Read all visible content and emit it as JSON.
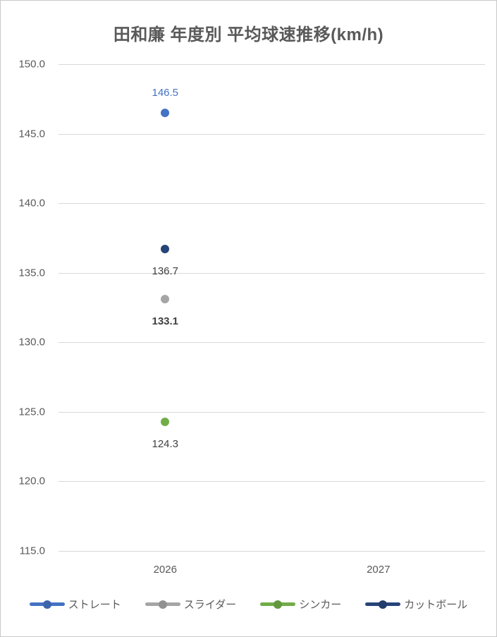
{
  "title": "田和廉 年度別 平均球速推移(km/h)",
  "chart_data": {
    "type": "scatter",
    "title": "田和廉 年度別 平均球速推移(km/h)",
    "categories": [
      "2026",
      "2027"
    ],
    "xlabel": "",
    "ylabel": "",
    "ylim": [
      115.0,
      150.0
    ],
    "ytick_step": 5.0,
    "yticks": [
      "150.0",
      "145.0",
      "140.0",
      "135.0",
      "130.0",
      "125.0",
      "120.0",
      "115.0"
    ],
    "grid": true,
    "legend_position": "bottom",
    "marker": "circle-on-line",
    "series": [
      {
        "name": "ストレート",
        "color": "#4472C4",
        "values": [
          146.5,
          null
        ],
        "label_color": "#4472C4",
        "label_bold": false,
        "label_position": "above"
      },
      {
        "name": "スライダー",
        "color": "#A5A5A5",
        "values": [
          133.1,
          null
        ],
        "label_color": "#404040",
        "label_bold": true,
        "label_position": "below"
      },
      {
        "name": "シンカー",
        "color": "#70AD47",
        "values": [
          124.3,
          null
        ],
        "label_color": "#404040",
        "label_bold": false,
        "label_position": "below"
      },
      {
        "name": "カットボール",
        "color": "#264478",
        "values": [
          136.7,
          null
        ],
        "label_color": "#404040",
        "label_bold": false,
        "label_position": "below"
      }
    ]
  },
  "colors": {
    "grid": "#D9D9D9",
    "axis_text": "#595959",
    "title_text": "#595959",
    "border": "#C8C8C8"
  }
}
